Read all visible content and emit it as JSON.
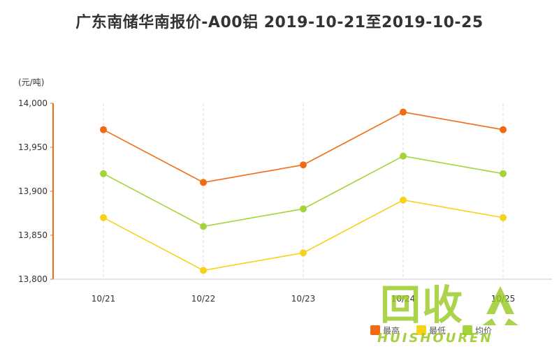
{
  "chart_data": {
    "type": "line",
    "title": "广东南储华南报价-A00铝 2019-10-21至2019-10-25",
    "unit_label": "(元/吨)",
    "categories": [
      "10/21",
      "10/22",
      "10/23",
      "10/24",
      "10/25"
    ],
    "ylim": [
      13800,
      14000
    ],
    "yticks": [
      13800,
      13850,
      13900,
      13950,
      14000
    ],
    "ytick_labels": [
      "13,800",
      "13,850",
      "13,900",
      "13,950",
      "14,000"
    ],
    "grid": "vertical-dashed",
    "legend_position": "bottom-right",
    "series": [
      {
        "name": "最高",
        "color": "#f26b12",
        "values": [
          13970,
          13910,
          13930,
          13990,
          13970
        ]
      },
      {
        "name": "最低",
        "color": "#f7d21c",
        "values": [
          13870,
          13810,
          13830,
          13890,
          13870
        ]
      },
      {
        "name": "均价",
        "color": "#a5d43a",
        "values": [
          13920,
          13860,
          13880,
          13940,
          13920
        ]
      }
    ]
  },
  "watermark": {
    "text": "回收",
    "subtext": "HUISHOUREN",
    "color": "#96c81e"
  }
}
